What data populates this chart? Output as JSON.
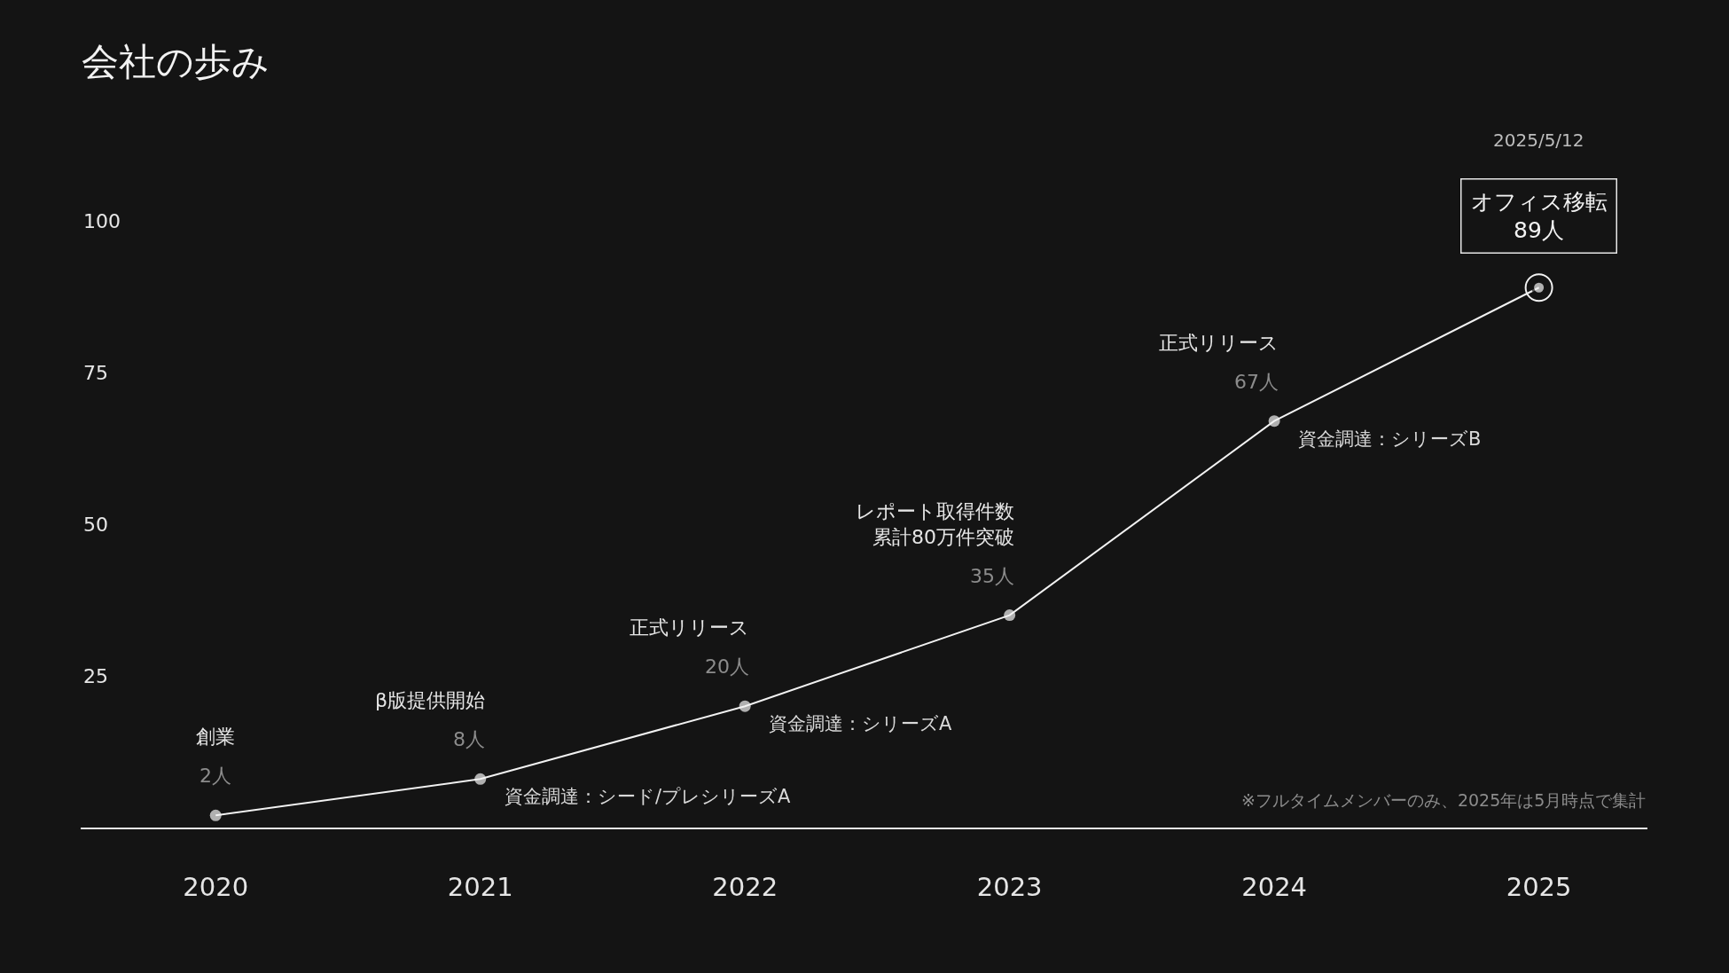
{
  "chart_data": {
    "type": "line",
    "title": "会社の歩み",
    "categories": [
      "2020",
      "2021",
      "2022",
      "2023",
      "2024",
      "2025"
    ],
    "series": [
      {
        "color": "#f2f2f2",
        "values": [
          2,
          8,
          20,
          35,
          67,
          89
        ],
        "value_labels": [
          "2人",
          "8人",
          "20人",
          "35人",
          "67人",
          "89人"
        ]
      }
    ],
    "ylim": [
      0,
      100
    ],
    "yticks": [
      25,
      50,
      75,
      100
    ],
    "grid": false,
    "marker": "circle",
    "line_style": "solid",
    "annotations": [
      "創業",
      "β版提供開始",
      "資金調達：シード/プレシリーズA",
      "正式リリース",
      "資金調達：シリーズA",
      "レポート取得件数累計80万件突破",
      "正式リリース",
      "資金調達：シリーズB",
      "2025/5/12",
      "オフィス移転",
      "※フルタイムメンバーのみ、2025年は5月時点で集計"
    ]
  }
}
